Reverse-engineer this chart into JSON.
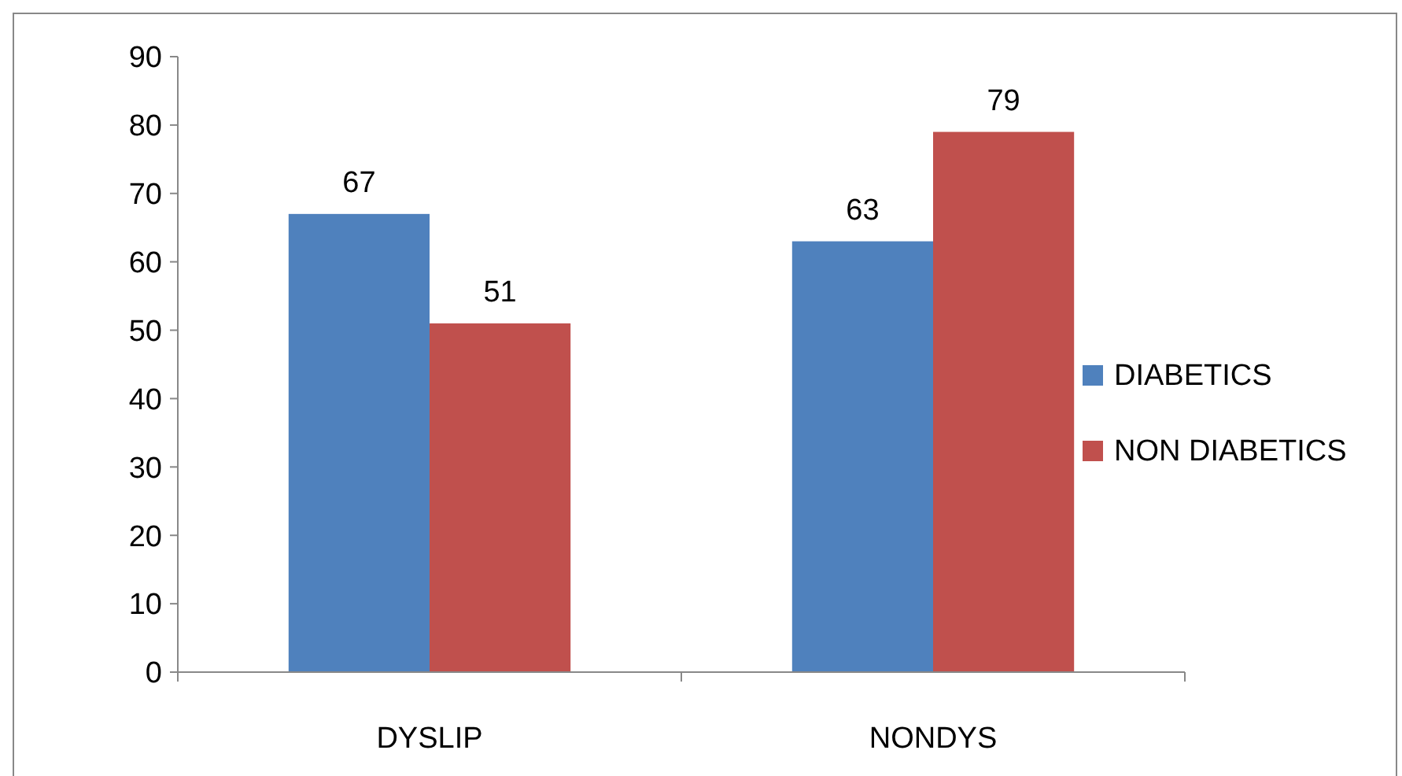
{
  "chart_data": {
    "type": "bar",
    "categories": [
      "DYSLIP",
      "NONDYS"
    ],
    "series": [
      {
        "name": "DIABETICS",
        "color": "#4f81bd",
        "values": [
          67,
          63
        ]
      },
      {
        "name": "NON DIABETICS",
        "color": "#c0504d",
        "values": [
          51,
          79
        ]
      }
    ],
    "ylim": [
      0,
      90
    ],
    "yticks": [
      0,
      10,
      20,
      30,
      40,
      50,
      60,
      70,
      80,
      90
    ],
    "data_labels": true,
    "legend": "right",
    "grid": false
  }
}
